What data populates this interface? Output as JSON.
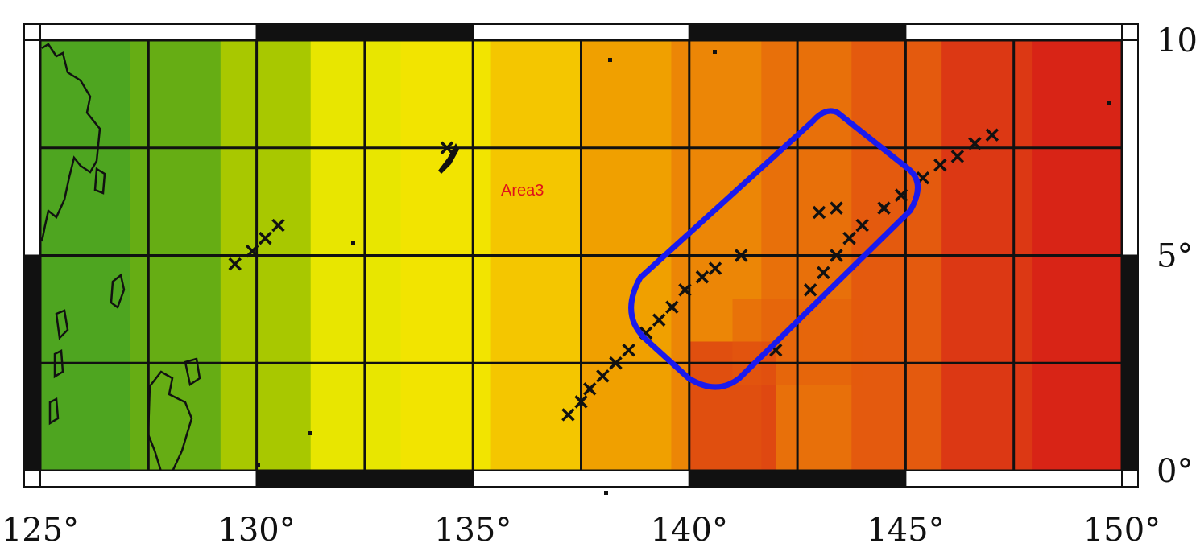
{
  "map": {
    "area_label": "Area3",
    "area_label_color": "#e0101a",
    "region_outline_color": "#1a1aee",
    "grid_color": "#111111",
    "frame_black": "#111111",
    "frame_white": "#ffffff",
    "lon_range": [
      125,
      150
    ],
    "lat_range": [
      0,
      10
    ],
    "lon_ticks": [
      {
        "value": 125,
        "label": "125°"
      },
      {
        "value": 130,
        "label": "130°"
      },
      {
        "value": 135,
        "label": "135°"
      },
      {
        "value": 140,
        "label": "140°"
      },
      {
        "value": 145,
        "label": "145°"
      },
      {
        "value": 150,
        "label": "150°"
      }
    ],
    "lat_ticks": [
      {
        "value": 0,
        "label": "0°"
      },
      {
        "value": 5,
        "label": "5°"
      },
      {
        "value": 10,
        "label": "10"
      }
    ],
    "color_ramp": [
      "#4ea520",
      "#66ad14",
      "#a8c800",
      "#e8e600",
      "#f2e400",
      "#f4c600",
      "#f0a000",
      "#ec8606",
      "#e8700a",
      "#e45a0e",
      "#dc3814",
      "#d82416"
    ],
    "markers": [
      [
        137.2,
        1.3
      ],
      [
        137.5,
        1.6
      ],
      [
        137.7,
        1.9
      ],
      [
        138.0,
        2.2
      ],
      [
        138.3,
        2.5
      ],
      [
        138.6,
        2.8
      ],
      [
        139.0,
        3.2
      ],
      [
        139.3,
        3.5
      ],
      [
        139.6,
        3.8
      ],
      [
        139.9,
        4.2
      ],
      [
        140.3,
        4.5
      ],
      [
        140.6,
        4.7
      ],
      [
        141.2,
        5.0
      ],
      [
        142.0,
        2.8
      ],
      [
        142.8,
        4.2
      ],
      [
        143.1,
        4.6
      ],
      [
        143.4,
        5.0
      ],
      [
        143.7,
        5.4
      ],
      [
        144.0,
        5.7
      ],
      [
        143.0,
        6.0
      ],
      [
        143.4,
        6.1
      ],
      [
        144.5,
        6.1
      ],
      [
        144.9,
        6.4
      ],
      [
        145.4,
        6.8
      ],
      [
        145.8,
        7.1
      ],
      [
        146.2,
        7.3
      ],
      [
        146.6,
        7.6
      ],
      [
        147.0,
        7.8
      ],
      [
        129.5,
        4.8
      ],
      [
        129.9,
        5.1
      ],
      [
        130.2,
        5.4
      ],
      [
        130.5,
        5.7
      ],
      [
        134.4,
        7.5
      ]
    ]
  }
}
